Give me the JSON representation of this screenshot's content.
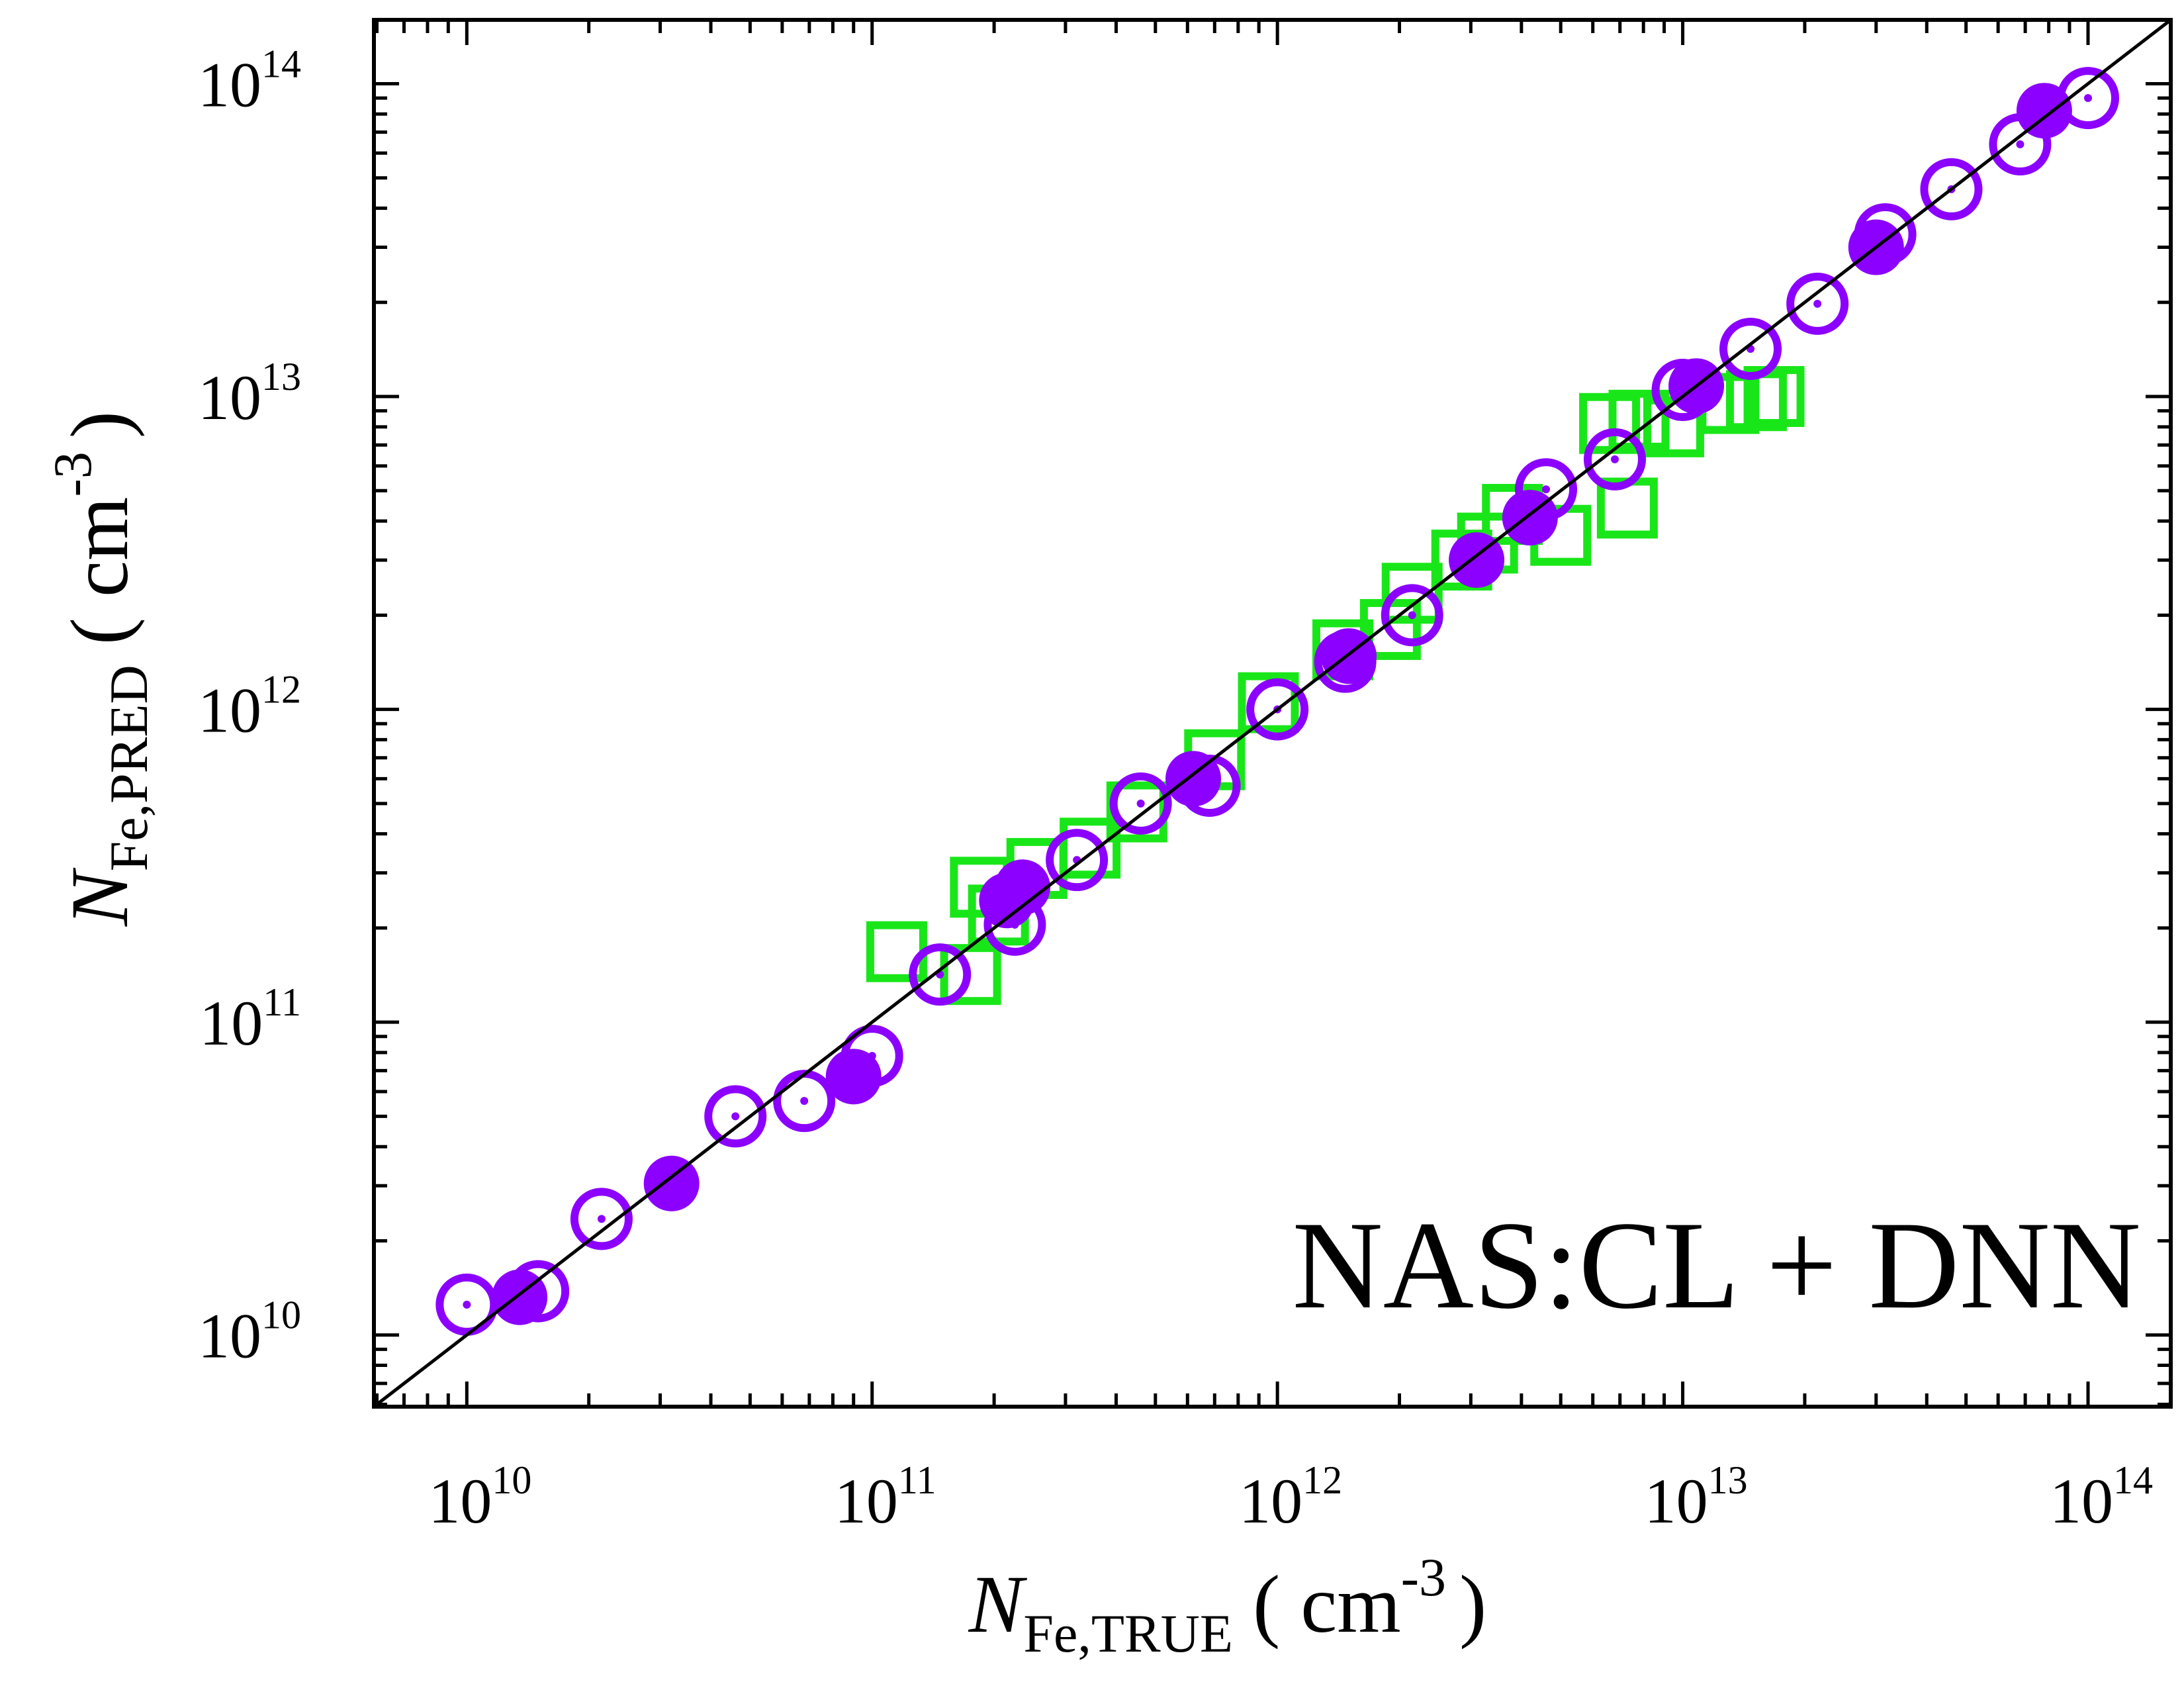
{
  "chart_data": {
    "type": "scatter",
    "x_scale": "log",
    "y_scale": "log",
    "xlim": [
      5900000000.0,
      160000000000000.0
    ],
    "ylim": [
      5900000000.0,
      160000000000000.0
    ],
    "x_ticks": [
      {
        "value": 10000000000.0,
        "base": "10",
        "exp": "10"
      },
      {
        "value": 100000000000.0,
        "base": "10",
        "exp": "11"
      },
      {
        "value": 1000000000000.0,
        "base": "10",
        "exp": "12"
      },
      {
        "value": 10000000000000.0,
        "base": "10",
        "exp": "13"
      },
      {
        "value": 100000000000000.0,
        "base": "10",
        "exp": "14"
      }
    ],
    "y_ticks": [
      {
        "value": 10000000000.0,
        "base": "10",
        "exp": "10"
      },
      {
        "value": 100000000000.0,
        "base": "10",
        "exp": "11"
      },
      {
        "value": 1000000000000.0,
        "base": "10",
        "exp": "12"
      },
      {
        "value": 10000000000000.0,
        "base": "10",
        "exp": "13"
      },
      {
        "value": 100000000000000.0,
        "base": "10",
        "exp": "14"
      }
    ],
    "xlabel": {
      "main": "N",
      "sub": "Fe,TRUE",
      "unit_open": "( cm",
      "unit_exp": "-3",
      "unit_close": ")"
    },
    "ylabel": {
      "main": "N",
      "sub": "Fe,PRED",
      "unit_open": "( cm",
      "unit_exp": "-3",
      "unit_close": ")"
    },
    "annotation": "NAS:CL + DNN",
    "grid": false,
    "reference_line": "y = x",
    "colors": {
      "purple": "#8b00ff",
      "green": "#19e619",
      "line": "#000000"
    },
    "series": [
      {
        "marker": "open-circle-with-dot",
        "color": "#8b00ff",
        "points": [
          [
            10000000000.0,
            12500000000.0
          ],
          [
            15000000000.0,
            13800000000.0
          ],
          [
            21500000000.0,
            23500000000.0
          ],
          [
            46000000000.0,
            50000000000.0
          ],
          [
            68000000000.0,
            56000000000.0
          ],
          [
            100000000000.0,
            78000000000.0
          ],
          [
            147000000000.0,
            142000000000.0
          ],
          [
            225000000000.0,
            205000000000.0
          ],
          [
            320000000000.0,
            330000000000.0
          ],
          [
            460000000000.0,
            500000000000.0
          ],
          [
            680000000000.0,
            570000000000.0
          ],
          [
            1000000000000.0,
            1000000000000.0
          ],
          [
            1470000000000.0,
            1420000000000.0
          ],
          [
            2150000000000.0,
            2000000000000.0
          ],
          [
            4600000000000.0,
            5050000000000.0
          ],
          [
            6800000000000.0,
            6300000000000.0
          ],
          [
            10000000000000.0,
            10500000000000.0
          ],
          [
            14700000000000.0,
            14200000000000.0
          ],
          [
            21500000000000.0,
            19800000000000.0
          ],
          [
            31600000000000.0,
            33000000000000.0
          ],
          [
            46000000000000.0,
            46000000000000.0
          ],
          [
            68000000000000.0,
            64000000000000.0
          ],
          [
            100000000000000.0,
            90000000000000.0
          ]
        ]
      },
      {
        "marker": "filled-circle",
        "color": "#8b00ff",
        "points": [
          [
            13500000000.0,
            13200000000.0
          ],
          [
            32000000000.0,
            30500000000.0
          ],
          [
            90000000000.0,
            67000000000.0
          ],
          [
            215000000000.0,
            245000000000.0
          ],
          [
            235000000000.0,
            270000000000.0
          ],
          [
            620000000000.0,
            600000000000.0
          ],
          [
            1500000000000.0,
            1480000000000.0
          ],
          [
            3100000000000.0,
            3000000000000.0
          ],
          [
            4200000000000.0,
            4100000000000.0
          ],
          [
            10800000000000.0,
            10800000000000.0
          ],
          [
            30000000000000.0,
            30000000000000.0
          ],
          [
            78000000000000.0,
            82000000000000.0
          ]
        ]
      },
      {
        "marker": "open-square",
        "color": "#19e619",
        "points": [
          [
            115000000000.0,
            168000000000.0
          ],
          [
            175000000000.0,
            142000000000.0
          ],
          [
            185000000000.0,
            270000000000.0
          ],
          [
            205000000000.0,
            220000000000.0
          ],
          [
            255000000000.0,
            310000000000.0
          ],
          [
            345000000000.0,
            360000000000.0
          ],
          [
            450000000000.0,
            470000000000.0
          ],
          [
            700000000000.0,
            690000000000.0
          ],
          [
            950000000000.0,
            1050000000000.0
          ],
          [
            1450000000000.0,
            1550000000000.0
          ],
          [
            1900000000000.0,
            1800000000000.0
          ],
          [
            2150000000000.0,
            2350000000000.0
          ],
          [
            2850000000000.0,
            3000000000000.0
          ],
          [
            3300000000000.0,
            3400000000000.0
          ],
          [
            3800000000000.0,
            4200000000000.0
          ],
          [
            5000000000000.0,
            3600000000000.0
          ],
          [
            6600000000000.0,
            8200000000000.0
          ],
          [
            7300000000000.0,
            4400000000000.0
          ],
          [
            7800000000000.0,
            8400000000000.0
          ],
          [
            9500000000000.0,
            8000000000000.0
          ],
          [
            13000000000000.0,
            9500000000000.0
          ],
          [
            15200000000000.0,
            9700000000000.0
          ],
          [
            16800000000000.0,
            10000000000000.0
          ]
        ]
      }
    ]
  }
}
